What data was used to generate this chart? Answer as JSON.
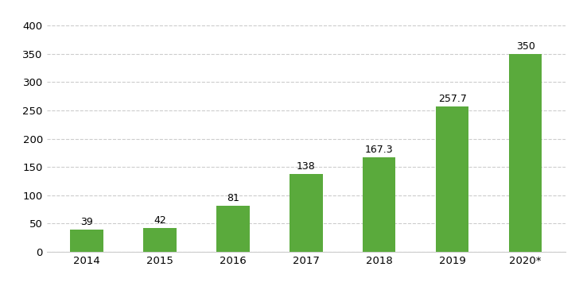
{
  "categories": [
    "2014",
    "2015",
    "2016",
    "2017",
    "2018",
    "2019",
    "2020*"
  ],
  "values": [
    39,
    42,
    81,
    138,
    167.3,
    257.7,
    350
  ],
  "labels": [
    "39",
    "42",
    "81",
    "138",
    "167.3",
    "257.7",
    "350"
  ],
  "bar_color": "#5aaa3c",
  "ylim": [
    0,
    410
  ],
  "yticks": [
    0,
    50,
    100,
    150,
    200,
    250,
    300,
    350,
    400
  ],
  "background_color": "#ffffff",
  "grid_color": "#cccccc",
  "label_fontsize": 9,
  "tick_fontsize": 9.5,
  "bar_width": 0.45
}
